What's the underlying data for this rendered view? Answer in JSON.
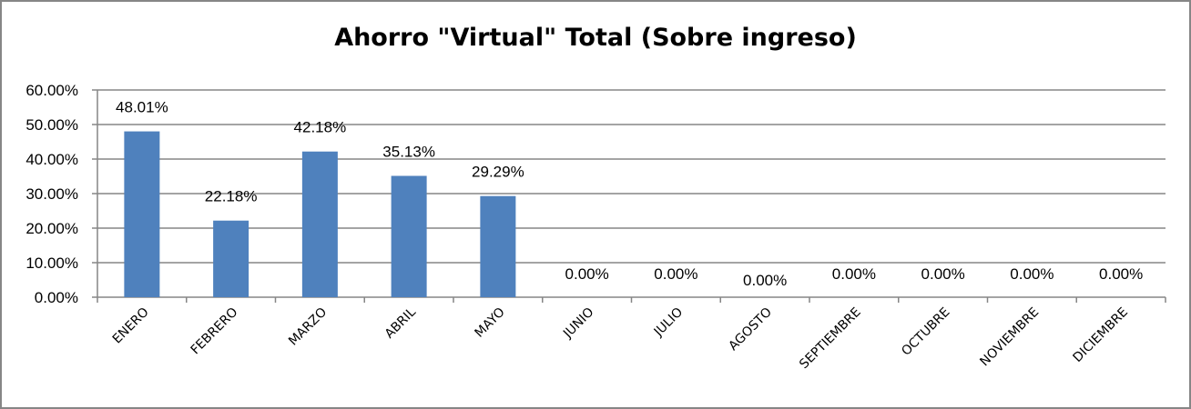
{
  "chart_data": {
    "type": "bar",
    "title": "Ahorro \"Virtual\" Total (Sobre ingreso)",
    "xlabel": "",
    "ylabel": "",
    "categories": [
      "ENERO",
      "FEBRERO",
      "MARZO",
      "ABRIL",
      "MAYO",
      "JUNIO",
      "JULIO",
      "AGOSTO",
      "SEPTIEMBRE",
      "OCTUBRE",
      "NOVIEMBRE",
      "DICIEMBRE"
    ],
    "values": [
      48.01,
      22.18,
      42.18,
      35.13,
      29.29,
      0,
      0,
      0,
      0,
      0,
      0,
      0
    ],
    "data_labels": [
      "48.01%",
      "22.18%",
      "42.18%",
      "35.13%",
      "29.29%",
      "0.00%",
      "0.00%",
      "0.00%",
      "0.00%",
      "0.00%",
      "0.00%",
      "0.00%"
    ],
    "y_ticks": [
      "0.00%",
      "10.00%",
      "20.00%",
      "30.00%",
      "40.00%",
      "50.00%",
      "60.00%"
    ],
    "ylim": [
      0,
      60
    ],
    "grid": true,
    "legend": "none",
    "bar_color": "#4F81BD"
  }
}
